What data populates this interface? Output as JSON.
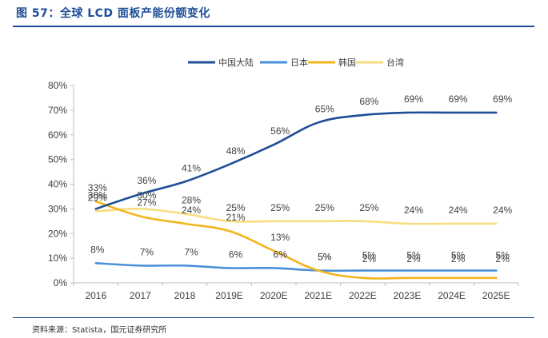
{
  "header": {
    "title": "图 57：全球 LCD 面板产能份额变化"
  },
  "footer": {
    "source": "资料来源：Statista，国元证券研究所"
  },
  "colors": {
    "china": "#1f4e96",
    "japan": "#4a90d9",
    "korea": "#f2b51c",
    "taiwan": "#f8de7e",
    "axis": "#bfbfbf",
    "text": "#404040"
  },
  "chart_data": {
    "type": "line",
    "categories": [
      "2016",
      "2017",
      "2018",
      "2019E",
      "2020E",
      "2021E",
      "2022E",
      "2023E",
      "2024E",
      "2025E"
    ],
    "y_ticks": [
      "0%",
      "10%",
      "20%",
      "30%",
      "40%",
      "50%",
      "60%",
      "70%",
      "80%"
    ],
    "ylim": [
      0,
      80
    ],
    "legend_position": "top-center",
    "grid": false,
    "series": [
      {
        "name": "中国大陆",
        "color": "#1f4e96",
        "values": [
          30,
          36,
          41,
          48,
          56,
          65,
          68,
          69,
          69,
          69
        ],
        "labels": [
          "30%",
          "36%",
          "41%",
          "48%",
          "56%",
          "65%",
          "68%",
          "69%",
          "69%",
          "69%"
        ]
      },
      {
        "name": "日本",
        "color": "#4a90d9",
        "values": [
          8,
          7,
          7,
          6,
          6,
          5,
          5,
          5,
          5,
          5
        ],
        "labels": [
          "8%",
          "7%",
          "7%",
          "6%",
          "6%",
          "5%",
          "5%",
          "5%",
          "5%",
          "5%"
        ]
      },
      {
        "name": "韩国",
        "color": "#f2b51c",
        "values": [
          33,
          27,
          24,
          21,
          13,
          5,
          2,
          2,
          2,
          2
        ],
        "labels": [
          "33%",
          "27%",
          "24%",
          "21%",
          "13%",
          "5%",
          "2%",
          "2%",
          "2%",
          "2%"
        ]
      },
      {
        "name": "台湾",
        "color": "#f8de7e",
        "values": [
          29,
          30,
          28,
          25,
          25,
          25,
          25,
          24,
          24,
          24
        ],
        "labels": [
          "29%",
          "30%",
          "28%",
          "25%",
          "25%",
          "25%",
          "25%",
          "24%",
          "24%",
          "24%"
        ]
      }
    ]
  }
}
